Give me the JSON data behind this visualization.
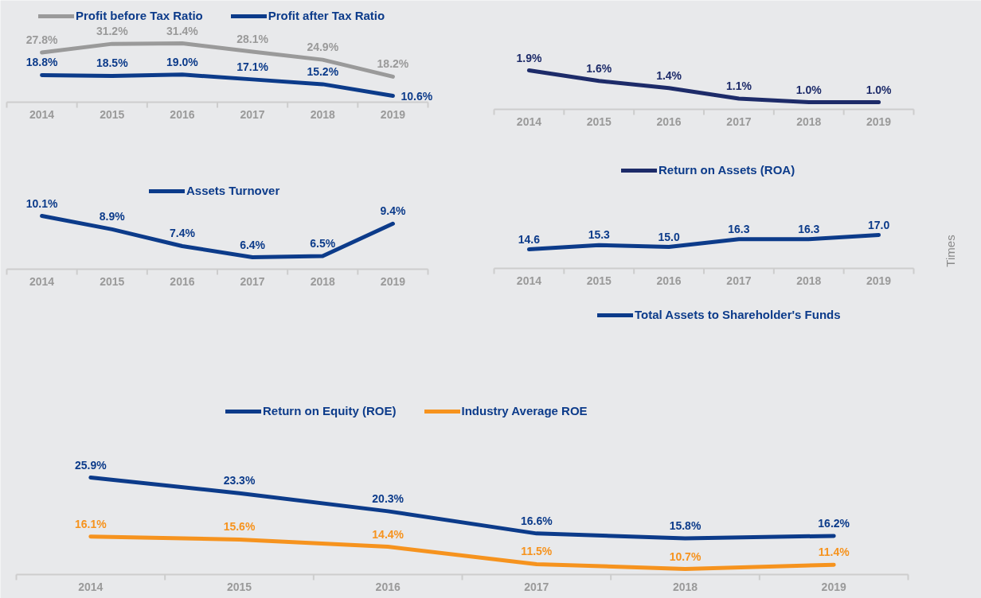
{
  "chart_data": [
    {
      "type": "line",
      "categories": [
        "2014",
        "2015",
        "2016",
        "2017",
        "2018",
        "2019"
      ],
      "legend": "top",
      "series": [
        {
          "name": "Profit before Tax Ratio",
          "color": "#9a9a9a",
          "values": [
            27.8,
            31.2,
            31.4,
            28.1,
            24.9,
            18.2
          ],
          "value_labels": [
            "27.8%",
            "31.2%",
            "31.4%",
            "28.1%",
            "24.9%",
            "18.2%"
          ]
        },
        {
          "name": "Profit after Tax Ratio",
          "color": "#0c3b8a",
          "values": [
            18.8,
            18.5,
            19.0,
            17.1,
            15.2,
            10.6
          ],
          "value_labels": [
            "18.8%",
            "18.5%",
            "19.0%",
            "17.1%",
            "15.2%",
            "10.6%"
          ]
        }
      ]
    },
    {
      "type": "line",
      "categories": [
        "2014",
        "2015",
        "2016",
        "2017",
        "2018",
        "2019"
      ],
      "legend": "bottom",
      "series": [
        {
          "name": "Return on Assets (ROA)",
          "color": "#1d2b69",
          "values": [
            1.9,
            1.6,
            1.4,
            1.1,
            1.0,
            1.0
          ],
          "value_labels": [
            "1.9%",
            "1.6%",
            "1.4%",
            "1.1%",
            "1.0%",
            "1.0%"
          ]
        }
      ]
    },
    {
      "type": "line",
      "categories": [
        "2014",
        "2015",
        "2016",
        "2017",
        "2018",
        "2019"
      ],
      "legend": "top",
      "series": [
        {
          "name": "Assets Turnover",
          "color": "#0c3b8a",
          "values": [
            10.1,
            8.9,
            7.4,
            6.4,
            6.5,
            9.4
          ],
          "value_labels": [
            "10.1%",
            "8.9%",
            "7.4%",
            "6.4%",
            "6.5%",
            "9.4%"
          ]
        }
      ]
    },
    {
      "type": "line",
      "categories": [
        "2014",
        "2015",
        "2016",
        "2017",
        "2018",
        "2019"
      ],
      "ylabel": "Times",
      "legend": "bottom",
      "series": [
        {
          "name": "Total Assets to Shareholder's Funds",
          "color": "#0c3b8a",
          "values": [
            14.6,
            15.3,
            15.0,
            16.3,
            16.3,
            17.0
          ],
          "value_labels": [
            "14.6",
            "15.3",
            "15.0",
            "16.3",
            "16.3",
            "17.0"
          ]
        }
      ]
    },
    {
      "type": "line",
      "categories": [
        "2014",
        "2015",
        "2016",
        "2017",
        "2018",
        "2019"
      ],
      "legend": "top",
      "series": [
        {
          "name": "Return on Equity (ROE)",
          "color": "#0c3b8a",
          "values": [
            25.9,
            23.3,
            20.3,
            16.6,
            15.8,
            16.2
          ],
          "value_labels": [
            "25.9%",
            "23.3%",
            "20.3%",
            "16.6%",
            "15.8%",
            "16.2%"
          ]
        },
        {
          "name": "Industry Average ROE",
          "color": "#f6931e",
          "values": [
            16.1,
            15.6,
            14.4,
            11.5,
            10.7,
            11.4
          ],
          "value_labels": [
            "16.1%",
            "15.6%",
            "14.4%",
            "11.5%",
            "10.7%",
            "11.4%"
          ]
        }
      ]
    }
  ]
}
